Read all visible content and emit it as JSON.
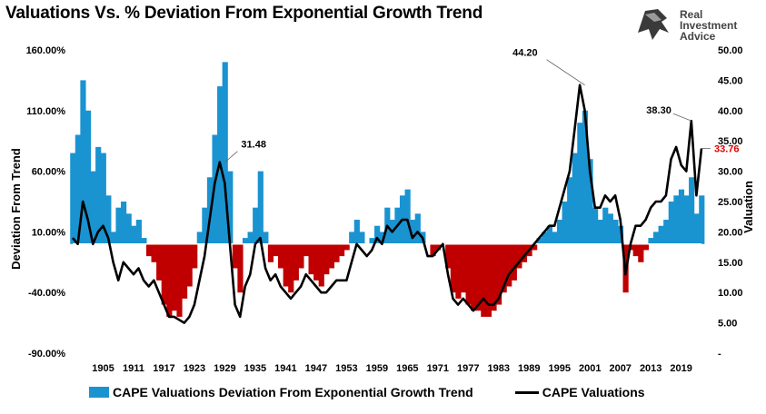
{
  "chart_data": {
    "type": "area",
    "title": "Valuations Vs. % Deviation From Exponential Growth Trend",
    "ylabel_left": "Deviation From Trend",
    "ylabel_right": "Valuation",
    "y_left_range": [
      -90,
      160
    ],
    "y_right_range": [
      0,
      50
    ],
    "y_left_ticks": [
      "160.00%",
      "110.00%",
      "60.00%",
      "10.00%",
      "-40.00%",
      "-90.00%"
    ],
    "y_right_ticks": [
      "50.00",
      "45.00",
      "40.00",
      "35.00",
      "30.00",
      "25.00",
      "20.00",
      "15.00",
      "10.00",
      "5.00",
      "-"
    ],
    "x_ticks": [
      "1905",
      "1911",
      "1917",
      "1923",
      "1929",
      "1935",
      "1941",
      "1947",
      "1953",
      "1959",
      "1965",
      "1971",
      "1977",
      "1983",
      "1989",
      "1995",
      "2001",
      "2007",
      "2013",
      "2019"
    ],
    "x_range": [
      1899,
      2023
    ],
    "baseline_left": 0,
    "positive_color": "#1a93d1",
    "negative_color": "#c00000",
    "line_color": "#000000",
    "series": [
      {
        "name": "CAPE Valuations Deviation From Exponential Growth Trend",
        "axis": "left",
        "x": [
          1899,
          1900,
          1901,
          1902,
          1903,
          1904,
          1905,
          1906,
          1907,
          1908,
          1909,
          1910,
          1911,
          1912,
          1913,
          1914,
          1915,
          1916,
          1917,
          1918,
          1919,
          1920,
          1921,
          1922,
          1923,
          1924,
          1925,
          1926,
          1927,
          1928,
          1929,
          1930,
          1931,
          1932,
          1933,
          1934,
          1935,
          1936,
          1937,
          1938,
          1939,
          1940,
          1941,
          1942,
          1943,
          1944,
          1945,
          1946,
          1947,
          1948,
          1949,
          1950,
          1951,
          1952,
          1953,
          1954,
          1955,
          1956,
          1957,
          1958,
          1959,
          1960,
          1961,
          1962,
          1963,
          1964,
          1965,
          1966,
          1967,
          1968,
          1969,
          1970,
          1971,
          1972,
          1973,
          1974,
          1975,
          1976,
          1977,
          1978,
          1979,
          1980,
          1981,
          1982,
          1983,
          1984,
          1985,
          1986,
          1987,
          1988,
          1989,
          1990,
          1991,
          1992,
          1993,
          1994,
          1995,
          1996,
          1997,
          1998,
          1999,
          2000,
          2001,
          2002,
          2003,
          2004,
          2005,
          2006,
          2007,
          2008,
          2009,
          2010,
          2011,
          2012,
          2013,
          2014,
          2015,
          2016,
          2017,
          2018,
          2019,
          2020,
          2021,
          2022,
          2023
        ],
        "values": [
          75,
          90,
          135,
          110,
          60,
          80,
          75,
          40,
          10,
          30,
          35,
          25,
          15,
          20,
          5,
          -10,
          -15,
          -30,
          -50,
          -60,
          -55,
          -60,
          -45,
          -35,
          -20,
          10,
          30,
          55,
          90,
          130,
          150,
          60,
          -20,
          -40,
          5,
          10,
          30,
          60,
          10,
          -15,
          -10,
          -20,
          -35,
          -40,
          -30,
          -20,
          -10,
          -25,
          -30,
          -35,
          -25,
          -20,
          -15,
          -10,
          -5,
          10,
          20,
          10,
          0,
          5,
          15,
          10,
          30,
          20,
          30,
          40,
          45,
          20,
          25,
          10,
          0,
          -10,
          -5,
          0,
          -20,
          -40,
          -45,
          -40,
          -50,
          -55,
          -55,
          -60,
          -60,
          -55,
          -50,
          -40,
          -35,
          -30,
          -20,
          -15,
          -10,
          -5,
          5,
          10,
          15,
          10,
          20,
          35,
          55,
          75,
          100,
          110,
          70,
          30,
          20,
          30,
          25,
          20,
          15,
          -40,
          -5,
          -10,
          -15,
          -5,
          5,
          10,
          15,
          20,
          35,
          40,
          45,
          40,
          55,
          25,
          40
        ]
      },
      {
        "name": "CAPE Valuations",
        "axis": "right",
        "x": [
          1899,
          1900,
          1901,
          1902,
          1903,
          1904,
          1905,
          1906,
          1907,
          1908,
          1909,
          1910,
          1911,
          1912,
          1913,
          1914,
          1915,
          1916,
          1917,
          1918,
          1919,
          1920,
          1921,
          1922,
          1923,
          1924,
          1925,
          1926,
          1927,
          1928,
          1929,
          1930,
          1931,
          1932,
          1933,
          1934,
          1935,
          1936,
          1937,
          1938,
          1939,
          1940,
          1941,
          1942,
          1943,
          1944,
          1945,
          1946,
          1947,
          1948,
          1949,
          1950,
          1951,
          1952,
          1953,
          1954,
          1955,
          1956,
          1957,
          1958,
          1959,
          1960,
          1961,
          1962,
          1963,
          1964,
          1965,
          1966,
          1967,
          1968,
          1969,
          1970,
          1971,
          1972,
          1973,
          1974,
          1975,
          1976,
          1977,
          1978,
          1979,
          1980,
          1981,
          1982,
          1983,
          1984,
          1985,
          1986,
          1987,
          1988,
          1989,
          1990,
          1991,
          1992,
          1993,
          1994,
          1995,
          1996,
          1997,
          1998,
          1999,
          2000,
          2001,
          2002,
          2003,
          2004,
          2005,
          2006,
          2007,
          2008,
          2009,
          2010,
          2011,
          2012,
          2013,
          2014,
          2015,
          2016,
          2017,
          2018,
          2019,
          2020,
          2021,
          2022,
          2023
        ],
        "values": [
          19,
          18,
          25,
          22,
          18,
          20,
          21,
          19,
          15,
          12,
          15,
          14,
          13,
          14,
          12,
          11,
          12,
          10,
          8,
          6,
          6,
          5.5,
          5,
          6,
          8,
          12,
          16,
          22,
          28,
          31.5,
          28,
          18,
          8,
          6,
          11,
          13,
          18,
          19,
          14,
          12,
          13,
          11,
          10,
          9,
          10,
          11,
          13,
          12,
          11,
          10,
          10,
          11,
          12,
          12,
          12,
          15,
          18,
          17,
          16,
          17,
          19,
          18,
          21,
          20,
          21,
          22,
          22,
          19,
          20,
          19,
          16,
          16,
          17,
          18,
          13,
          9,
          8,
          9,
          8,
          7,
          8,
          9,
          8,
          8,
          9,
          11,
          13,
          14,
          15,
          16,
          17,
          18,
          19,
          20,
          21,
          21,
          24,
          27,
          30,
          37,
          44.2,
          40,
          30,
          24,
          24,
          26,
          25,
          26,
          22,
          13,
          18,
          21,
          21,
          22,
          24,
          25,
          25,
          26,
          32,
          34,
          31,
          30,
          38.3,
          26,
          33.76
        ]
      }
    ],
    "annotations": [
      {
        "text": "31.48",
        "x": 1929,
        "y": 31.48
      },
      {
        "text": "44.20",
        "x": 2000,
        "y": 44.2
      },
      {
        "text": "38.30",
        "x": 2021,
        "y": 38.3
      },
      {
        "text": "33.76",
        "x": 2023,
        "y": 33.76,
        "color": "#e00000"
      }
    ],
    "legend_position": "bottom"
  },
  "logo": {
    "line1": "Real",
    "line2": "Investment",
    "line3": "Advice"
  }
}
